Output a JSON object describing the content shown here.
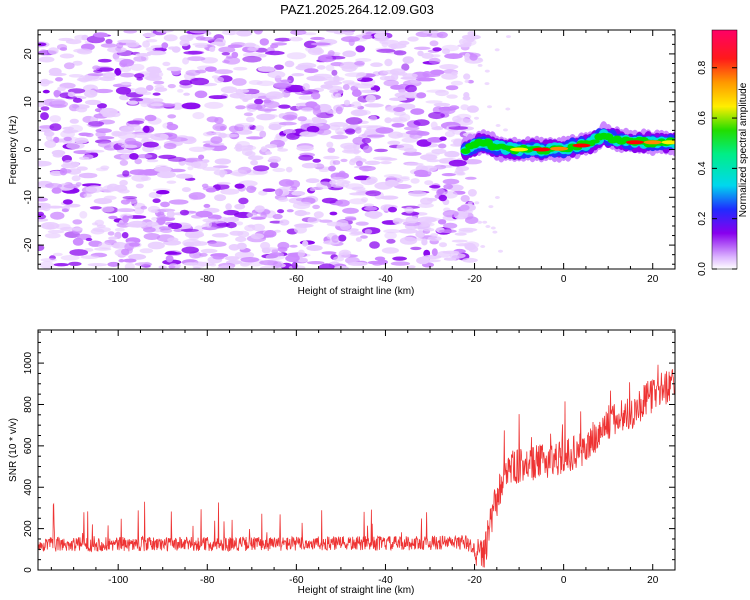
{
  "title": "PAZ1.2025.264.12.09.G03",
  "chart_data": [
    {
      "type": "heatmap",
      "name": "spectrogram",
      "xlabel": "Height of straight line (km)",
      "ylabel": "Frequency (Hz)",
      "xlim": [
        -118,
        25
      ],
      "ylim": [
        -25,
        25
      ],
      "xticks": [
        -100,
        -80,
        -60,
        -40,
        -20,
        0,
        20
      ],
      "yticks": [
        -20,
        -10,
        0,
        10,
        20
      ],
      "signal_onset_km": -22,
      "signal_track": [
        {
          "x": -22,
          "y": 0
        },
        {
          "x": -18,
          "y": 1.5
        },
        {
          "x": -15,
          "y": 0.5
        },
        {
          "x": -10,
          "y": 0
        },
        {
          "x": -5,
          "y": 0
        },
        {
          "x": 0,
          "y": 0.2
        },
        {
          "x": 5,
          "y": 1
        },
        {
          "x": 9,
          "y": 3
        },
        {
          "x": 12,
          "y": 2
        },
        {
          "x": 16,
          "y": 1.5
        },
        {
          "x": 20,
          "y": 1.5
        },
        {
          "x": 25,
          "y": 1.5
        }
      ],
      "colorbar": {
        "label": "Normalized spectral amplitude",
        "range": [
          0,
          0.95
        ],
        "ticks": [
          "0.0",
          "0.2",
          "0.4",
          "0.6",
          "0.8"
        ]
      }
    },
    {
      "type": "line",
      "name": "snr",
      "xlabel": "Height of straight line (km)",
      "ylabel": "SNR (10 * v/v)",
      "xlim": [
        -118,
        25
      ],
      "ylim": [
        0,
        1160
      ],
      "xticks": [
        -100,
        -80,
        -60,
        -40,
        -20,
        0,
        20
      ],
      "yticks": [
        0,
        200,
        400,
        600,
        800,
        1000
      ],
      "color": "#ee3333",
      "envelope": [
        {
          "x": -118,
          "y": 120
        },
        {
          "x": -40,
          "y": 125
        },
        {
          "x": -22,
          "y": 130
        },
        {
          "x": -18,
          "y": 60
        },
        {
          "x": -16,
          "y": 250
        },
        {
          "x": -13,
          "y": 480
        },
        {
          "x": -8,
          "y": 500
        },
        {
          "x": 0,
          "y": 540
        },
        {
          "x": 5,
          "y": 580
        },
        {
          "x": 10,
          "y": 700
        },
        {
          "x": 15,
          "y": 750
        },
        {
          "x": 20,
          "y": 840
        },
        {
          "x": 25,
          "y": 900
        }
      ]
    }
  ],
  "palette": [
    "#ffffff",
    "#e8ccff",
    "#cc88ff",
    "#8800ee",
    "#2233ff",
    "#00dddd",
    "#00dd00",
    "#ffee00",
    "#ff8800",
    "#ff0000",
    "#ff0066"
  ]
}
